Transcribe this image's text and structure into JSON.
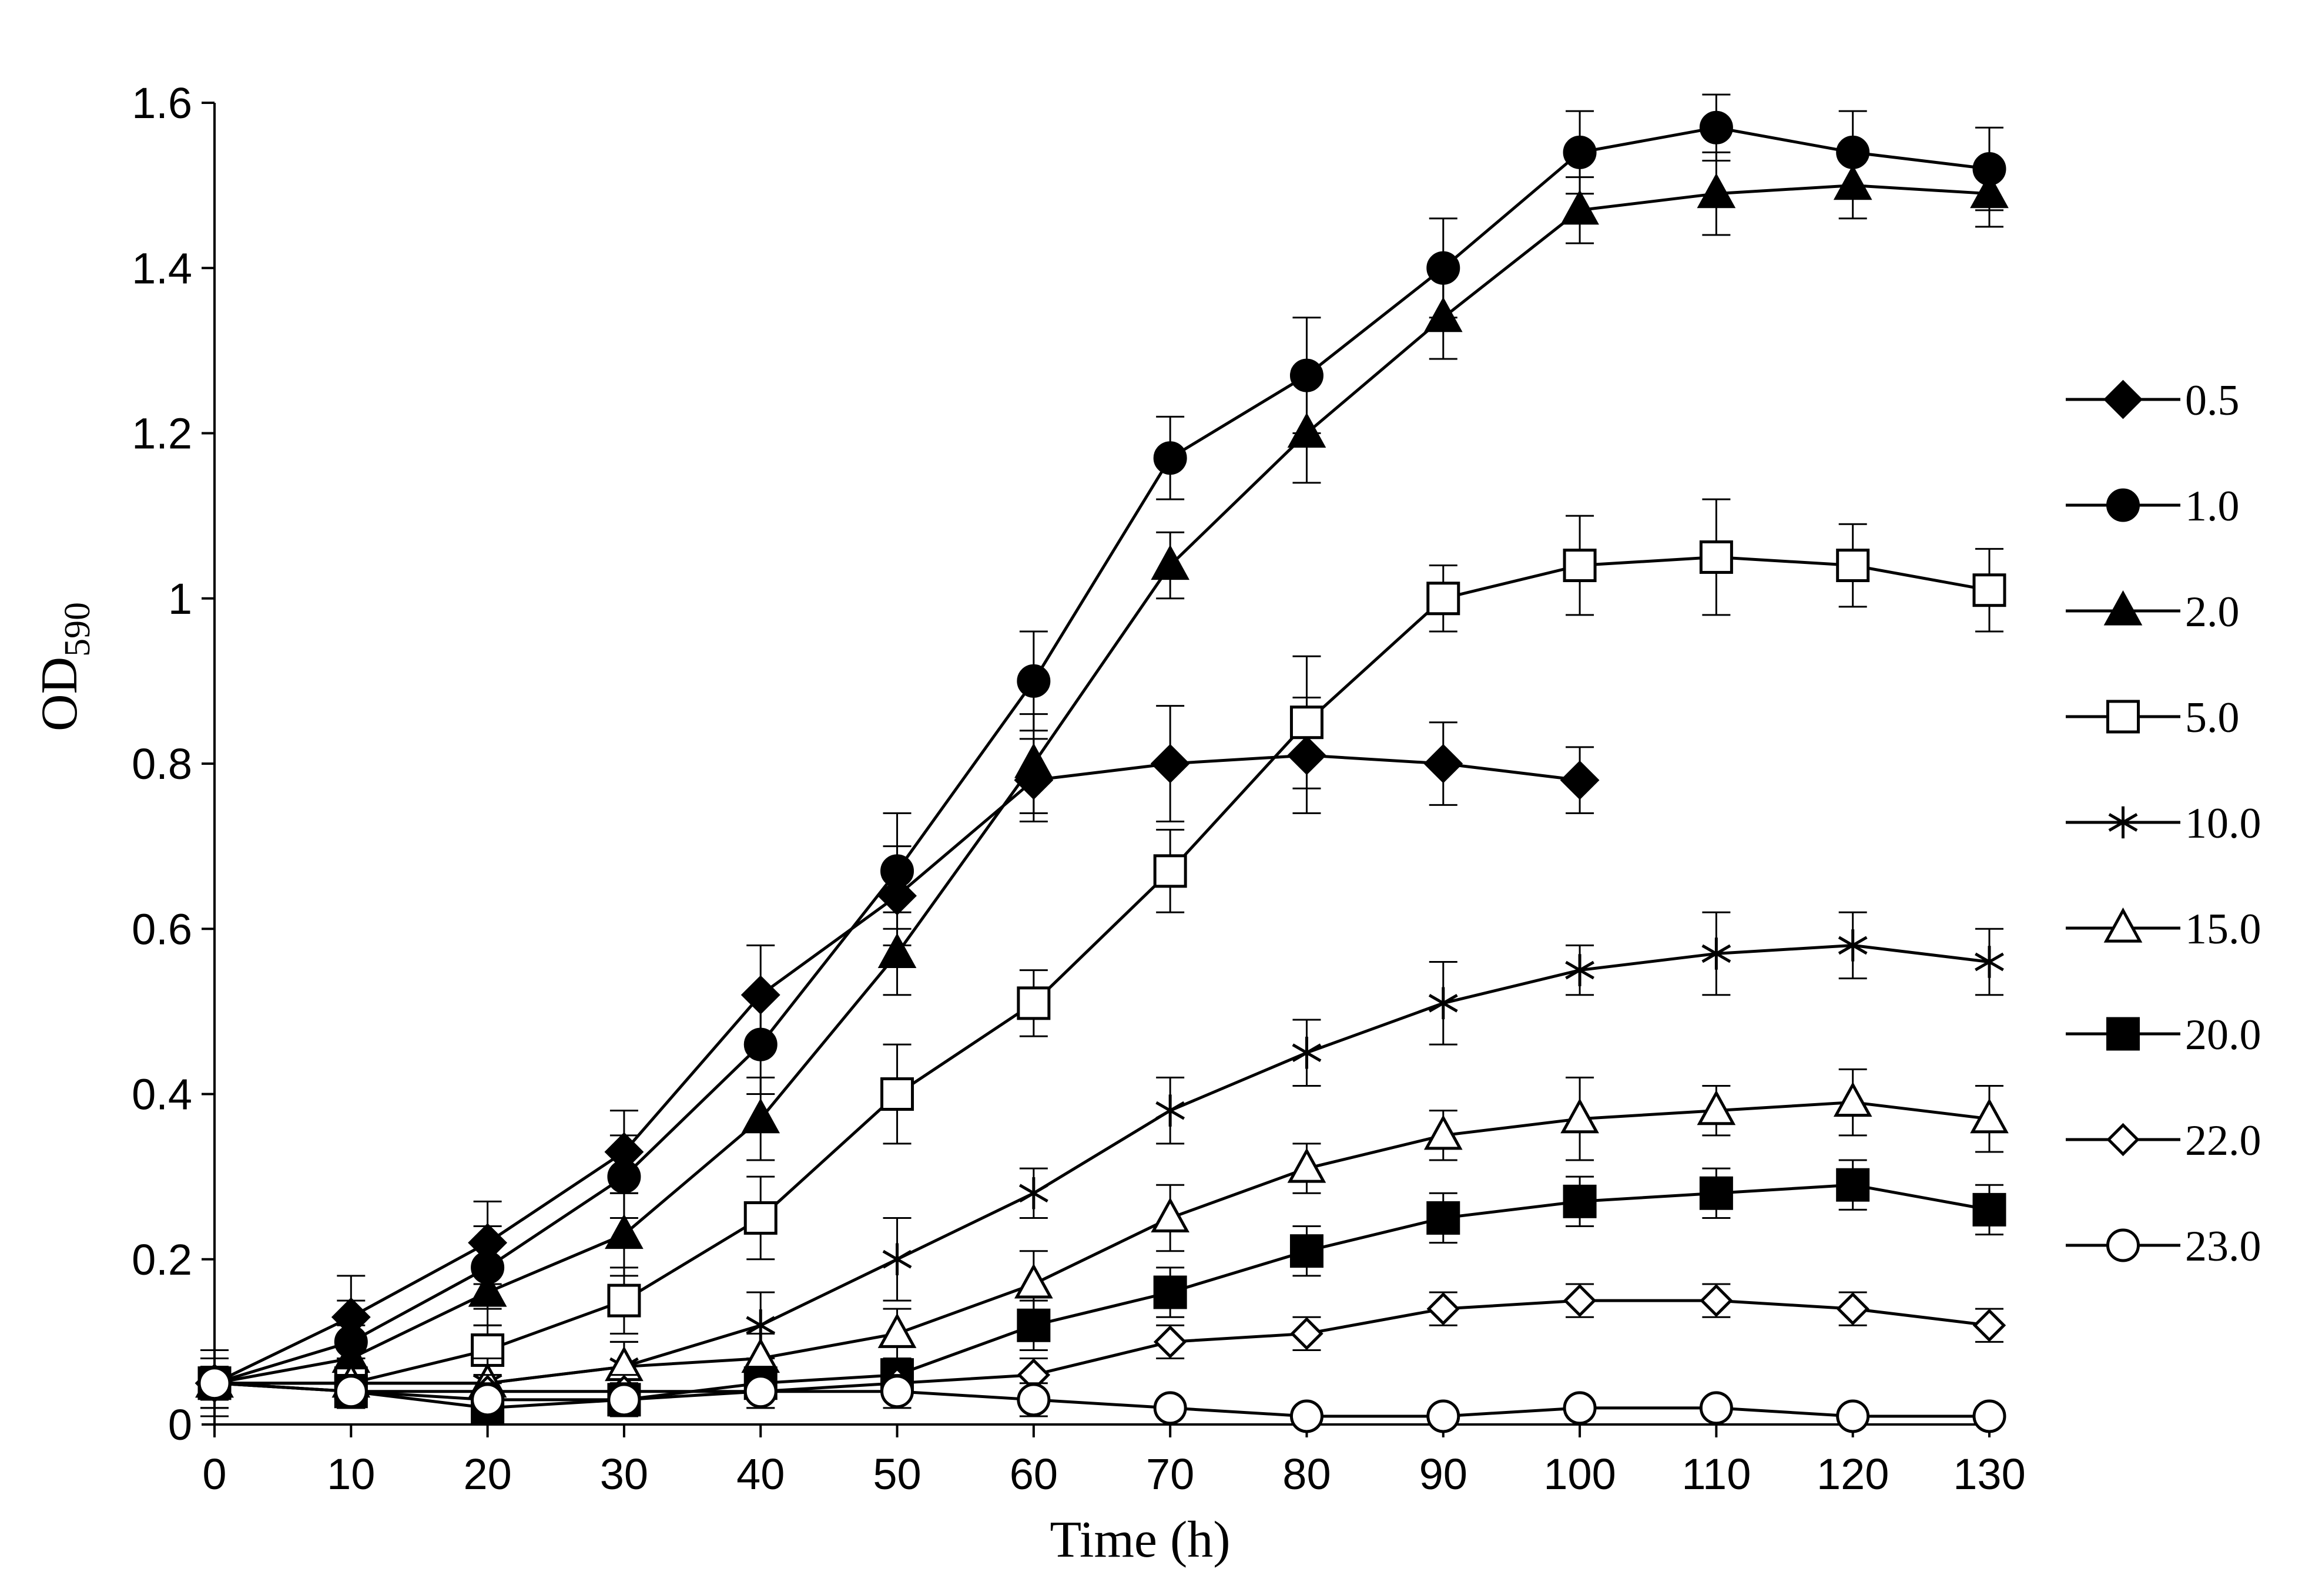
{
  "chart_data": {
    "type": "line",
    "title": "",
    "xlabel": "Time (h)",
    "ylabel_main": "OD",
    "ylabel_sub": "590",
    "xlim": [
      0,
      130
    ],
    "ylim": [
      0,
      1.6
    ],
    "x_ticks": [
      0,
      10,
      20,
      30,
      40,
      50,
      60,
      70,
      80,
      90,
      100,
      110,
      120,
      130
    ],
    "x_tick_labels": [
      "0",
      "10",
      "20",
      "30",
      "40",
      "50",
      "60",
      "70",
      "80",
      "90",
      "100",
      "110",
      "120",
      "130"
    ],
    "y_ticks": [
      0,
      0.2,
      0.4,
      0.6,
      0.8,
      1.0,
      1.2,
      1.4,
      1.6
    ],
    "y_tick_labels": [
      "0",
      "0.2",
      "0.4",
      "0.6",
      "0.8",
      "1",
      "1.2",
      "1.4",
      "1.6"
    ],
    "grid": false,
    "legend_position": "right",
    "series": [
      {
        "name": "0.5",
        "marker": "diamond",
        "fill": "filled",
        "x": [
          0,
          10,
          20,
          30,
          40,
          50,
          60,
          70,
          80,
          90,
          100
        ],
        "values": [
          0.05,
          0.13,
          0.22,
          0.33,
          0.52,
          0.64,
          0.78,
          0.8,
          0.81,
          0.8,
          0.78
        ],
        "errors": [
          0.04,
          0.05,
          0.05,
          0.05,
          0.06,
          0.06,
          0.05,
          0.07,
          0.07,
          0.05,
          0.04
        ]
      },
      {
        "name": "1.0",
        "marker": "circle",
        "fill": "filled",
        "x": [
          0,
          10,
          20,
          30,
          40,
          50,
          60,
          70,
          80,
          90,
          100,
          110,
          120,
          130
        ],
        "values": [
          0.05,
          0.1,
          0.19,
          0.3,
          0.46,
          0.67,
          0.9,
          1.17,
          1.27,
          1.4,
          1.54,
          1.57,
          1.54,
          1.52
        ],
        "errors": [
          0.04,
          0.05,
          0.05,
          0.05,
          0.06,
          0.07,
          0.06,
          0.05,
          0.07,
          0.06,
          0.05,
          0.04,
          0.05,
          0.05
        ]
      },
      {
        "name": "2.0",
        "marker": "triangle",
        "fill": "filled",
        "x": [
          0,
          10,
          20,
          30,
          40,
          50,
          60,
          70,
          80,
          90,
          100,
          110,
          120,
          130
        ],
        "values": [
          0.05,
          0.08,
          0.16,
          0.23,
          0.37,
          0.57,
          0.8,
          1.04,
          1.2,
          1.34,
          1.47,
          1.49,
          1.5,
          1.49
        ],
        "errors": [
          0.04,
          0.04,
          0.04,
          0.05,
          0.05,
          0.05,
          0.06,
          0.04,
          0.06,
          0.05,
          0.04,
          0.05,
          0.04,
          0.04
        ]
      },
      {
        "name": "5.0",
        "marker": "square",
        "fill": "open",
        "x": [
          0,
          10,
          20,
          30,
          40,
          50,
          60,
          70,
          80,
          90,
          100,
          110,
          120,
          130
        ],
        "values": [
          0.05,
          0.05,
          0.09,
          0.15,
          0.25,
          0.4,
          0.51,
          0.67,
          0.85,
          1.0,
          1.04,
          1.05,
          1.04,
          1.01
        ],
        "errors": [
          0.04,
          0.03,
          0.03,
          0.04,
          0.05,
          0.06,
          0.04,
          0.05,
          0.08,
          0.04,
          0.06,
          0.07,
          0.05,
          0.05
        ]
      },
      {
        "name": "10.0",
        "marker": "star",
        "fill": "open",
        "x": [
          0,
          10,
          20,
          30,
          40,
          50,
          60,
          70,
          80,
          90,
          100,
          110,
          120,
          130
        ],
        "values": [
          0.05,
          0.05,
          0.05,
          0.07,
          0.12,
          0.2,
          0.28,
          0.38,
          0.45,
          0.51,
          0.55,
          0.57,
          0.58,
          0.56
        ],
        "errors": [
          0.03,
          0.03,
          0.03,
          0.03,
          0.04,
          0.05,
          0.03,
          0.04,
          0.04,
          0.05,
          0.03,
          0.05,
          0.04,
          0.04
        ]
      },
      {
        "name": "15.0",
        "marker": "triangle",
        "fill": "open",
        "x": [
          0,
          10,
          20,
          30,
          40,
          50,
          60,
          70,
          80,
          90,
          100,
          110,
          120,
          130
        ],
        "values": [
          0.05,
          0.05,
          0.05,
          0.07,
          0.08,
          0.11,
          0.17,
          0.25,
          0.31,
          0.35,
          0.37,
          0.38,
          0.39,
          0.37
        ],
        "errors": [
          0.03,
          0.03,
          0.03,
          0.03,
          0.03,
          0.03,
          0.04,
          0.04,
          0.03,
          0.03,
          0.05,
          0.03,
          0.04,
          0.04
        ]
      },
      {
        "name": "20.0",
        "marker": "square",
        "fill": "filled",
        "x": [
          0,
          10,
          20,
          30,
          40,
          50,
          60,
          70,
          80,
          90,
          100,
          110,
          120,
          130
        ],
        "values": [
          0.05,
          0.04,
          0.02,
          0.03,
          0.05,
          0.06,
          0.12,
          0.16,
          0.21,
          0.25,
          0.27,
          0.28,
          0.29,
          0.26
        ],
        "errors": [
          0.03,
          0.02,
          0.02,
          0.02,
          0.02,
          0.02,
          0.03,
          0.03,
          0.03,
          0.03,
          0.03,
          0.03,
          0.03,
          0.03
        ]
      },
      {
        "name": "22.0",
        "marker": "diamond",
        "fill": "open",
        "x": [
          0,
          10,
          20,
          30,
          40,
          50,
          60,
          70,
          80,
          90,
          100,
          110,
          120,
          130
        ],
        "values": [
          0.05,
          0.04,
          0.04,
          0.04,
          0.04,
          0.05,
          0.06,
          0.1,
          0.11,
          0.14,
          0.15,
          0.15,
          0.14,
          0.12
        ],
        "errors": [
          0.02,
          0.02,
          0.02,
          0.02,
          0.02,
          0.02,
          0.02,
          0.02,
          0.02,
          0.02,
          0.02,
          0.02,
          0.02,
          0.02
        ]
      },
      {
        "name": "23.0",
        "marker": "circle",
        "fill": "open",
        "x": [
          0,
          10,
          20,
          30,
          40,
          50,
          60,
          70,
          80,
          90,
          100,
          110,
          120,
          130
        ],
        "values": [
          0.05,
          0.04,
          0.03,
          0.03,
          0.04,
          0.04,
          0.03,
          0.02,
          0.01,
          0.01,
          0.02,
          0.02,
          0.01,
          0.01
        ],
        "errors": [
          0.02,
          0.02,
          0.02,
          0.02,
          0.02,
          0.02,
          0.02,
          0.01,
          0.01,
          0.01,
          0.01,
          0.01,
          0.01,
          0.01
        ]
      }
    ]
  }
}
